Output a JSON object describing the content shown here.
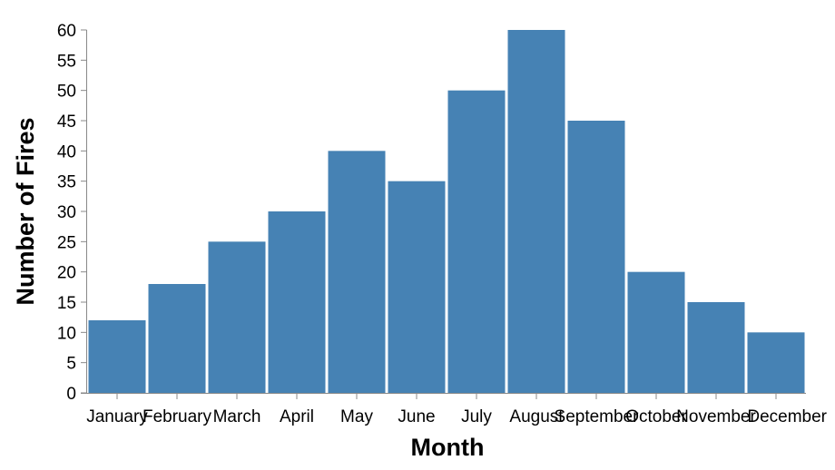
{
  "chart_data": {
    "type": "bar",
    "title": "",
    "xlabel": "Month",
    "ylabel": "Number of Fires",
    "categories": [
      "January",
      "February",
      "March",
      "April",
      "May",
      "June",
      "July",
      "August",
      "September",
      "October",
      "November",
      "December"
    ],
    "values": [
      12,
      18,
      25,
      30,
      40,
      35,
      50,
      60,
      45,
      20,
      15,
      10
    ],
    "ylim": [
      0,
      60
    ],
    "yticks": [
      0,
      5,
      10,
      15,
      20,
      25,
      30,
      35,
      40,
      45,
      50,
      55,
      60
    ],
    "grid": false,
    "legend": "none",
    "bar_color": "#4682b4",
    "axis_color": "#888888"
  }
}
